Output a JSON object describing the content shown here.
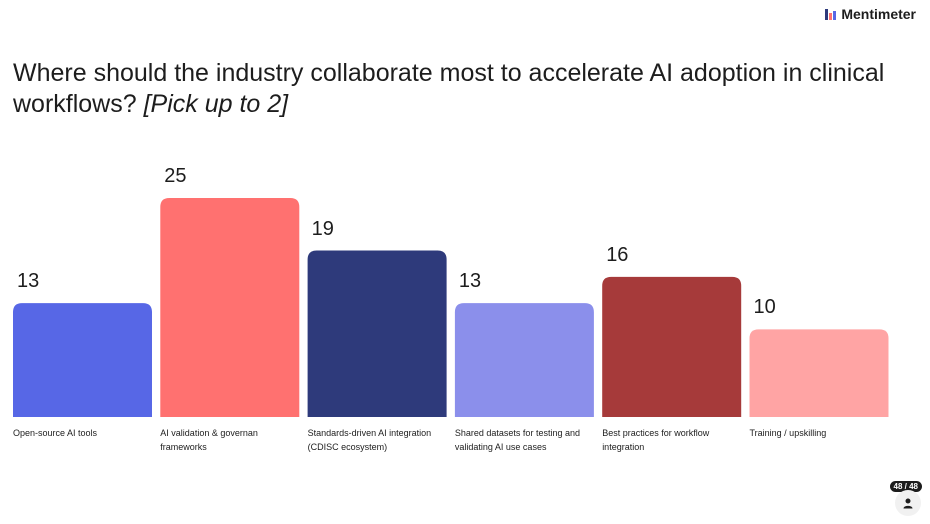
{
  "brand": {
    "name": "Mentimeter",
    "logo_icon": "mentimeter-logo-icon"
  },
  "question": {
    "text": "Where should the industry collaborate most to accelerate AI adoption in clinical workflows? ",
    "hint": "[Pick up to 2]"
  },
  "slide_counter": "48 / 48",
  "chart_data": {
    "type": "bar",
    "categories": [
      "Open-source AI tools",
      "AI validation & governan frameworks",
      "Standards-driven AI integration (CDISC ecosystem)",
      "Shared datasets for testing and validating AI use cases",
      "Best practices for workflow integration",
      "Training / upskilling"
    ],
    "values": [
      13,
      25,
      19,
      13,
      16,
      10
    ],
    "colors": [
      "#5767e6",
      "#ff7170",
      "#2e3a7b",
      "#8b8feb",
      "#a63a3a",
      "#ffa4a4"
    ],
    "ylim": [
      0,
      25
    ]
  }
}
